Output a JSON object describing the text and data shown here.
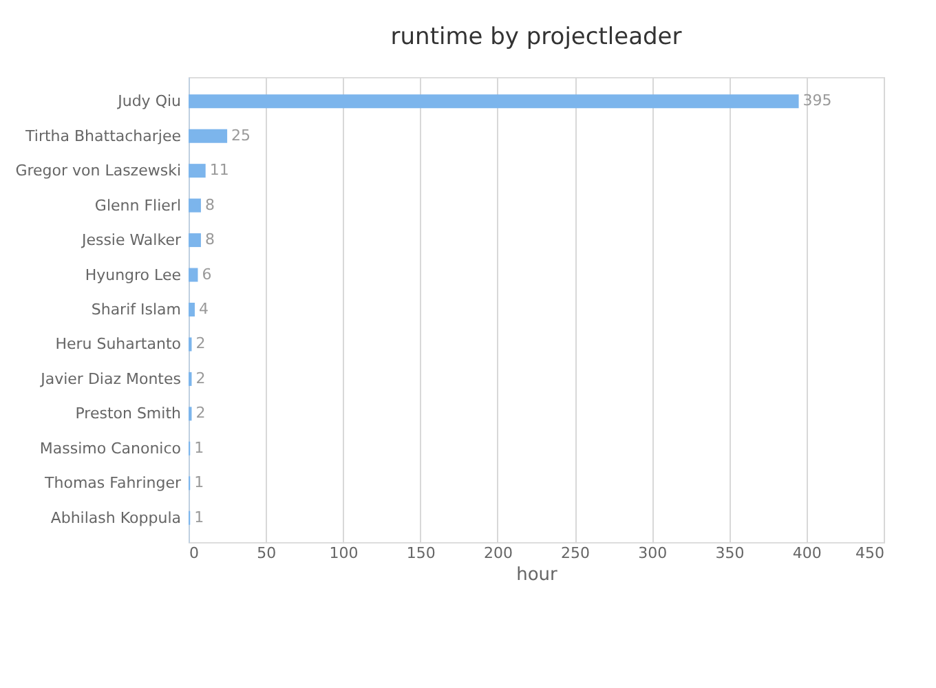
{
  "chart_data": {
    "type": "bar",
    "orientation": "horizontal",
    "title": "runtime by projectleader",
    "categories": [
      "Judy Qiu",
      "Tirtha Bhattacharjee",
      "Gregor von Laszewski",
      "Glenn Flierl",
      "Jessie Walker",
      "Hyungro Lee",
      "Sharif Islam",
      "Heru Suhartanto",
      "Javier Diaz Montes",
      "Preston Smith",
      "Massimo Canonico",
      "Thomas Fahringer",
      "Abhilash Koppula"
    ],
    "values": [
      395,
      25,
      11,
      8,
      8,
      6,
      4,
      2,
      2,
      2,
      1,
      1,
      1
    ],
    "color": "#7cb5ec",
    "xlabel": "hour",
    "xlim": [
      0,
      450
    ],
    "xticks": [
      0,
      50,
      100,
      150,
      200,
      250,
      300,
      350,
      400,
      450
    ],
    "grid": "x",
    "data_labels": true
  }
}
